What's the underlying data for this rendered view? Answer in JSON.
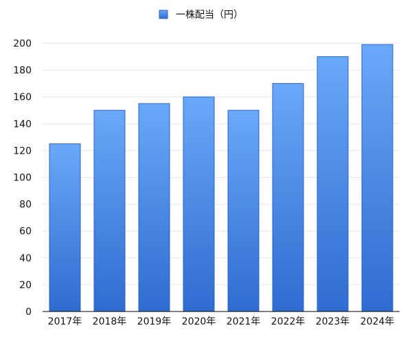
{
  "chart_data": {
    "type": "bar",
    "categories": [
      "2017年",
      "2018年",
      "2019年",
      "2020年",
      "2021年",
      "2022年",
      "2023年",
      "2024年"
    ],
    "series": [
      {
        "name": "一株配当（円）",
        "values": [
          125,
          150,
          155,
          160,
          150,
          170,
          190,
          199
        ]
      }
    ],
    "ylim": [
      0,
      200
    ],
    "yticks": [
      0,
      20,
      40,
      60,
      80,
      100,
      120,
      140,
      160,
      180,
      200
    ],
    "grid": true,
    "legend": "top-center",
    "colors": {
      "bar_top": "#6aa8f8",
      "bar_bottom": "#2f6cd0",
      "bar_edge": "#2a63c6",
      "grid": "#e6e6e6",
      "axis": "#000000"
    }
  }
}
